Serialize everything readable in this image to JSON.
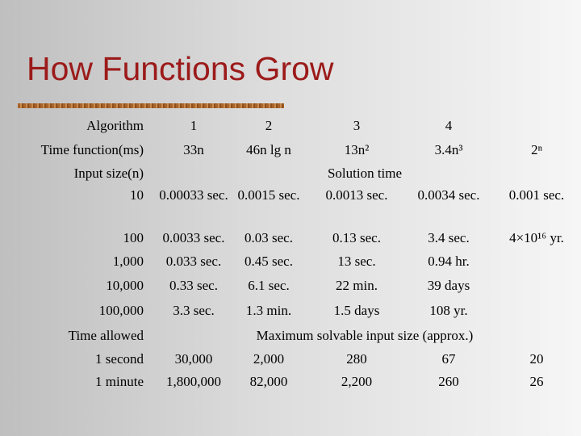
{
  "title": "How Functions Grow",
  "table": {
    "rows": [
      {
        "label": "Algorithm",
        "cells": [
          "1",
          "2",
          "3",
          "4"
        ]
      },
      {
        "label": "Time function(ms)",
        "cells": [
          "33n",
          "46n lg n",
          "13n²",
          "3.4n³",
          "2ⁿ"
        ]
      },
      {
        "label": "Input size(n)",
        "section": "Solution time"
      },
      {
        "label": "10",
        "cells": [
          "0.00033 sec.",
          "0.0015 sec.",
          "0.0013 sec.",
          "0.0034 sec.",
          "0.001 sec."
        ]
      },
      {
        "label": "100",
        "cells": [
          "0.0033 sec.",
          "0.03 sec.",
          "0.13 sec.",
          "3.4 sec.",
          "4×10¹⁶ yr."
        ]
      },
      {
        "label": "1,000",
        "cells": [
          "0.033 sec.",
          "0.45 sec.",
          "13 sec.",
          "0.94 hr."
        ]
      },
      {
        "label": "10,000",
        "cells": [
          "0.33 sec.",
          "6.1 sec.",
          "22 min.",
          "39 days"
        ]
      },
      {
        "label": "100,000",
        "cells": [
          "3.3 sec.",
          "1.3 min.",
          "1.5 days",
          "108 yr."
        ]
      },
      {
        "label": "Time allowed",
        "section": "Maximum solvable input size (approx.)"
      },
      {
        "label": "1 second",
        "cells": [
          "30,000",
          "2,000",
          "280",
          "67",
          "20"
        ]
      },
      {
        "label": "1 minute",
        "cells": [
          "1,800,000",
          "82,000",
          "2,200",
          "260",
          "26"
        ]
      }
    ]
  }
}
